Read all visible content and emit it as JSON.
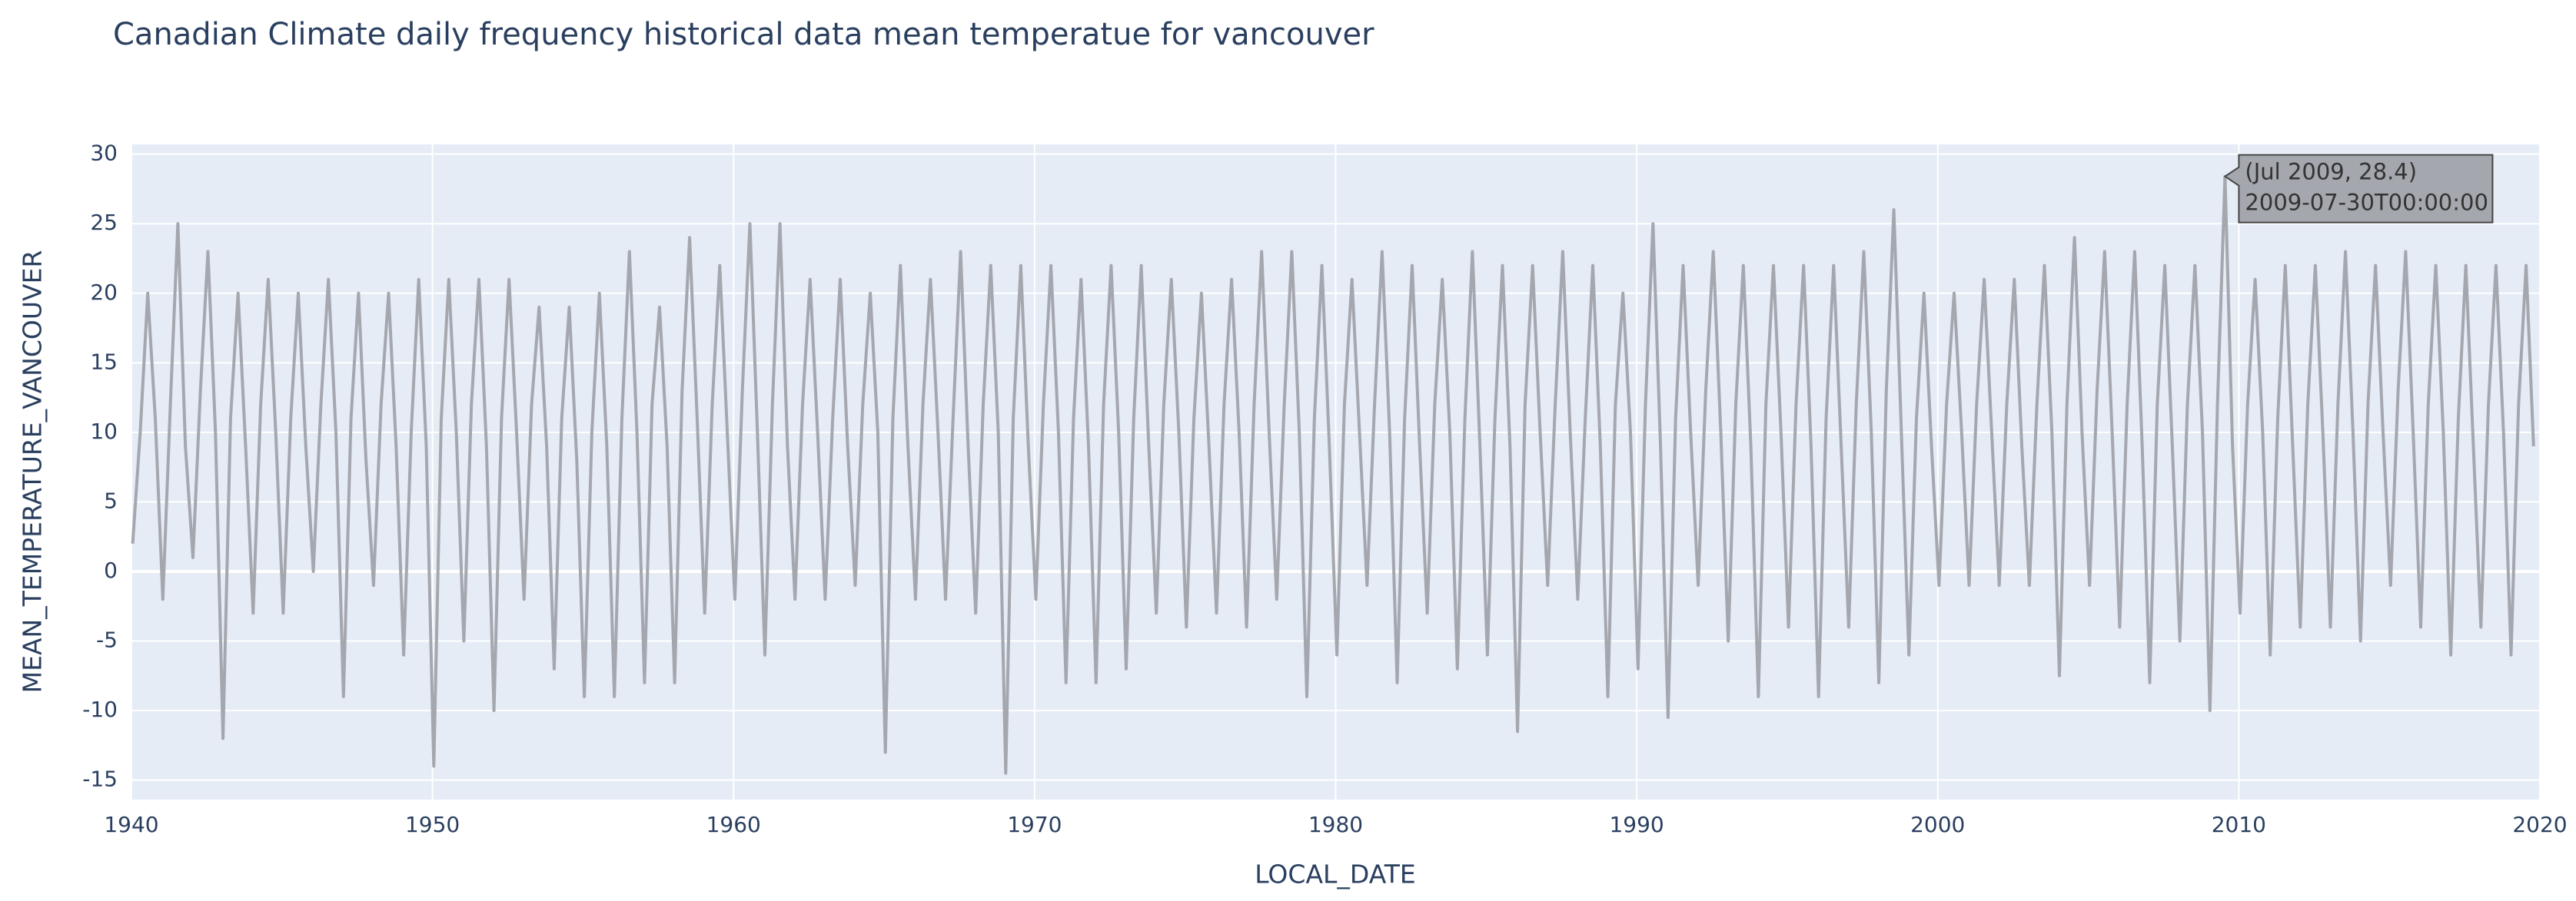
{
  "chart_data": {
    "type": "line",
    "title": "Canadian Climate daily frequency historical data mean temperatue for vancouver",
    "x_label": "LOCAL_DATE",
    "y_label": "MEAN_TEMPERATURE_VANCOUVER",
    "x": [
      "1940-01",
      "1940-04",
      "1940-07",
      "1940-10",
      "1941-01",
      "1941-04",
      "1941-07",
      "1941-10",
      "1942-01",
      "1942-04",
      "1942-07",
      "1942-10",
      "1943-01",
      "1943-04",
      "1943-07",
      "1943-10",
      "1944-01",
      "1944-04",
      "1944-07",
      "1944-10",
      "1945-01",
      "1945-04",
      "1945-07",
      "1945-10",
      "1946-01",
      "1946-04",
      "1946-07",
      "1946-10",
      "1947-01",
      "1947-04",
      "1947-07",
      "1947-10",
      "1948-01",
      "1948-04",
      "1948-07",
      "1948-10",
      "1949-01",
      "1949-04",
      "1949-07",
      "1949-10",
      "1950-01",
      "1950-04",
      "1950-07",
      "1950-10",
      "1951-01",
      "1951-04",
      "1951-07",
      "1951-10",
      "1952-01",
      "1952-04",
      "1952-07",
      "1952-10",
      "1953-01",
      "1953-04",
      "1953-07",
      "1953-10",
      "1954-01",
      "1954-04",
      "1954-07",
      "1954-10",
      "1955-01",
      "1955-04",
      "1955-07",
      "1955-10",
      "1956-01",
      "1956-04",
      "1956-07",
      "1956-10",
      "1957-01",
      "1957-04",
      "1957-07",
      "1957-10",
      "1958-01",
      "1958-04",
      "1958-07",
      "1958-10",
      "1959-01",
      "1959-04",
      "1959-07",
      "1959-10",
      "1960-01",
      "1960-04",
      "1960-07",
      "1960-10",
      "1961-01",
      "1961-04",
      "1961-07",
      "1961-10",
      "1962-01",
      "1962-04",
      "1962-07",
      "1962-10",
      "1963-01",
      "1963-04",
      "1963-07",
      "1963-10",
      "1964-01",
      "1964-04",
      "1964-07",
      "1964-10",
      "1965-01",
      "1965-04",
      "1965-07",
      "1965-10",
      "1966-01",
      "1966-04",
      "1966-07",
      "1966-10",
      "1967-01",
      "1967-04",
      "1967-07",
      "1967-10",
      "1968-01",
      "1968-04",
      "1968-07",
      "1968-10",
      "1969-01",
      "1969-04",
      "1969-07",
      "1969-10",
      "1970-01",
      "1970-04",
      "1970-07",
      "1970-10",
      "1971-01",
      "1971-04",
      "1971-07",
      "1971-10",
      "1972-01",
      "1972-04",
      "1972-07",
      "1972-10",
      "1973-01",
      "1973-04",
      "1973-07",
      "1973-10",
      "1974-01",
      "1974-04",
      "1974-07",
      "1974-10",
      "1975-01",
      "1975-04",
      "1975-07",
      "1975-10",
      "1976-01",
      "1976-04",
      "1976-07",
      "1976-10",
      "1977-01",
      "1977-04",
      "1977-07",
      "1977-10",
      "1978-01",
      "1978-04",
      "1978-07",
      "1978-10",
      "1979-01",
      "1979-04",
      "1979-07",
      "1979-10",
      "1980-01",
      "1980-04",
      "1980-07",
      "1980-10",
      "1981-01",
      "1981-04",
      "1981-07",
      "1981-10",
      "1982-01",
      "1982-04",
      "1982-07",
      "1982-10",
      "1983-01",
      "1983-04",
      "1983-07",
      "1983-10",
      "1984-01",
      "1984-04",
      "1984-07",
      "1984-10",
      "1985-01",
      "1985-04",
      "1985-07",
      "1985-10",
      "1986-01",
      "1986-04",
      "1986-07",
      "1986-10",
      "1987-01",
      "1987-04",
      "1987-07",
      "1987-10",
      "1988-01",
      "1988-04",
      "1988-07",
      "1988-10",
      "1989-01",
      "1989-04",
      "1989-07",
      "1989-10",
      "1990-01",
      "1990-04",
      "1990-07",
      "1990-10",
      "1991-01",
      "1991-04",
      "1991-07",
      "1991-10",
      "1992-01",
      "1992-04",
      "1992-07",
      "1992-10",
      "1993-01",
      "1993-04",
      "1993-07",
      "1993-10",
      "1994-01",
      "1994-04",
      "1994-07",
      "1994-10",
      "1995-01",
      "1995-04",
      "1995-07",
      "1995-10",
      "1996-01",
      "1996-04",
      "1996-07",
      "1996-10",
      "1997-01",
      "1997-04",
      "1997-07",
      "1997-10",
      "1998-01",
      "1998-04",
      "1998-07",
      "1998-10",
      "1999-01",
      "1999-04",
      "1999-07",
      "1999-10",
      "2000-01",
      "2000-04",
      "2000-07",
      "2000-10",
      "2001-01",
      "2001-04",
      "2001-07",
      "2001-10",
      "2002-01",
      "2002-04",
      "2002-07",
      "2002-10",
      "2003-01",
      "2003-04",
      "2003-07",
      "2003-10",
      "2004-01",
      "2004-04",
      "2004-07",
      "2004-10",
      "2005-01",
      "2005-04",
      "2005-07",
      "2005-10",
      "2006-01",
      "2006-04",
      "2006-07",
      "2006-10",
      "2007-01",
      "2007-04",
      "2007-07",
      "2007-10",
      "2008-01",
      "2008-04",
      "2008-07",
      "2008-10",
      "2009-01",
      "2009-04",
      "2009-07",
      "2009-10",
      "2010-01",
      "2010-04",
      "2010-07",
      "2010-10",
      "2011-01",
      "2011-04",
      "2011-07",
      "2011-10",
      "2012-01",
      "2012-04",
      "2012-07",
      "2012-10",
      "2013-01",
      "2013-04",
      "2013-07",
      "2013-10",
      "2014-01",
      "2014-04",
      "2014-07",
      "2014-10",
      "2015-01",
      "2015-04",
      "2015-07",
      "2015-10",
      "2016-01",
      "2016-04",
      "2016-07",
      "2016-10",
      "2017-01",
      "2017-04",
      "2017-07",
      "2017-10",
      "2018-01",
      "2018-04",
      "2018-07",
      "2018-10",
      "2019-01",
      "2019-04",
      "2019-07",
      "2019-10"
    ],
    "series": [
      {
        "name": "MEAN_TEMPERATURE_VANCOUVER",
        "color": "#a5a7ae",
        "values": [
          2,
          10,
          20,
          11,
          -2,
          12,
          25,
          9,
          1,
          13,
          23,
          10,
          -12,
          11,
          20,
          9,
          -3,
          12,
          21,
          10,
          -3,
          11,
          20,
          9,
          0,
          12,
          21,
          10,
          -9,
          11,
          20,
          8,
          -1,
          12,
          20,
          9,
          -6,
          10,
          21,
          9,
          -14,
          11,
          21,
          10,
          -5,
          12,
          21,
          9,
          -10,
          11,
          21,
          10,
          -2,
          12,
          19,
          9,
          -7,
          11,
          19,
          8,
          -9,
          10,
          20,
          9,
          -9,
          11,
          23,
          10,
          -8,
          12,
          19,
          9,
          -8,
          13,
          24,
          11,
          -3,
          12,
          22,
          10,
          -2,
          13,
          25,
          10,
          -6,
          12,
          25,
          9,
          -2,
          12,
          21,
          10,
          -2,
          11,
          21,
          9,
          -1,
          12,
          20,
          10,
          -13,
          11,
          22,
          9,
          -2,
          12,
          21,
          10,
          -2,
          11,
          23,
          9,
          -3,
          12,
          22,
          10,
          -14.5,
          11,
          22,
          9,
          -2,
          12,
          22,
          10,
          -8,
          11,
          21,
          9,
          -8,
          12,
          22,
          10,
          -7,
          11,
          22,
          9,
          -3,
          12,
          21,
          10,
          -4,
          11,
          20,
          9,
          -3,
          12,
          21,
          10,
          -4,
          12,
          23,
          10,
          -2,
          12,
          23,
          10,
          -9,
          11,
          22,
          9,
          -6,
          12,
          21,
          10,
          -1,
          12,
          23,
          10,
          -8,
          11,
          22,
          9,
          -3,
          12,
          21,
          10,
          -7,
          11,
          23,
          9,
          -6,
          11,
          22,
          9,
          -11.5,
          12,
          22,
          10,
          -1,
          12,
          23,
          10,
          -2,
          11,
          22,
          9,
          -9,
          12,
          20,
          10,
          -7,
          12,
          25,
          9,
          -10.5,
          11,
          22,
          10,
          -1,
          13,
          23,
          10,
          -5,
          12,
          22,
          9,
          -9,
          12,
          22,
          10,
          -4,
          12,
          22,
          9,
          -9,
          11,
          22,
          9,
          -4,
          12,
          23,
          10,
          -8,
          13,
          26,
          10,
          -6,
          11,
          20,
          9,
          -1,
          12,
          20,
          10,
          -1,
          12,
          21,
          10,
          -1,
          12,
          21,
          9,
          -1,
          12,
          22,
          10,
          -7.5,
          12,
          24,
          10,
          -1,
          13,
          23,
          10,
          -4,
          12,
          23,
          9,
          -8,
          12,
          22,
          9,
          -5,
          12,
          22,
          10,
          -10,
          12,
          28.4,
          9,
          -3,
          12,
          21,
          10,
          -6,
          11,
          22,
          9,
          -4,
          12,
          22,
          10,
          -4,
          12,
          23,
          10,
          -5,
          12,
          22,
          10,
          -1,
          13,
          23,
          10,
          -4,
          12,
          22,
          10,
          -6,
          11,
          22,
          9,
          -4,
          12,
          22,
          10,
          -6,
          12,
          22,
          9
        ]
      }
    ],
    "xlim": [
      1940,
      2020
    ],
    "xticks": [
      1940,
      1950,
      1960,
      1970,
      1980,
      1990,
      2000,
      2010,
      2020
    ],
    "ylim": [
      -16.4,
      30.7
    ],
    "yticks": [
      -15,
      -10,
      -5,
      0,
      5,
      10,
      15,
      20,
      25,
      30
    ],
    "grid": true,
    "hover": {
      "label": "(Jul 2009, 28.4)",
      "date": "2009-07-30T00:00:00"
    }
  }
}
